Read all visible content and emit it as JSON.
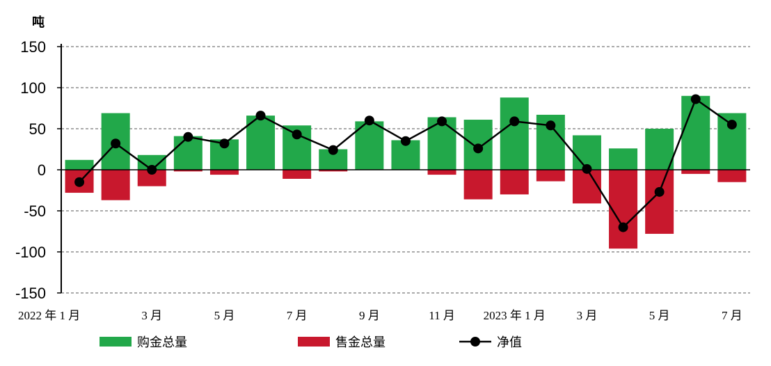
{
  "chart_data": {
    "type": "bar",
    "unit_label": "吨",
    "categories": [
      "2022-01",
      "2022-02",
      "2022-03",
      "2022-04",
      "2022-05",
      "2022-06",
      "2022-07",
      "2022-08",
      "2022-09",
      "2022-10",
      "2022-11",
      "2022-12",
      "2023-01",
      "2023-02",
      "2023-03",
      "2023-04",
      "2023-05",
      "2023-06",
      "2023-07"
    ],
    "x_tick_labels": [
      "2022 年 1 月",
      "",
      "3 月",
      "",
      "5 月",
      "",
      "7 月",
      "",
      "9 月",
      "",
      "11 月",
      "",
      "2023 年 1 月",
      "",
      "3 月",
      "",
      "5 月",
      "",
      "7 月"
    ],
    "ylim": [
      -150,
      150
    ],
    "yticks": [
      150,
      100,
      50,
      0,
      -50,
      -100,
      -150
    ],
    "grid": true,
    "legend_position": "bottom",
    "series": [
      {
        "name": "购金总量",
        "type": "bar",
        "color": "#22a84a",
        "values": [
          12,
          69,
          18,
          41,
          37,
          66,
          54,
          25,
          59,
          36,
          64,
          61,
          88,
          67,
          42,
          26,
          50,
          90,
          69
        ]
      },
      {
        "name": "售金总量",
        "type": "bar",
        "color": "#c8182d",
        "values": [
          -28,
          -37,
          -20,
          -2,
          -6,
          0,
          -11,
          -2,
          0,
          0,
          -6,
          -36,
          -30,
          -14,
          -41,
          -96,
          -78,
          -5,
          -15
        ]
      },
      {
        "name": "净值",
        "type": "line",
        "color": "#000000",
        "values": [
          -15,
          32,
          0,
          40,
          32,
          66,
          43,
          24,
          60,
          35,
          59,
          26,
          59,
          54,
          1,
          -70,
          -27,
          86,
          55
        ]
      }
    ]
  }
}
